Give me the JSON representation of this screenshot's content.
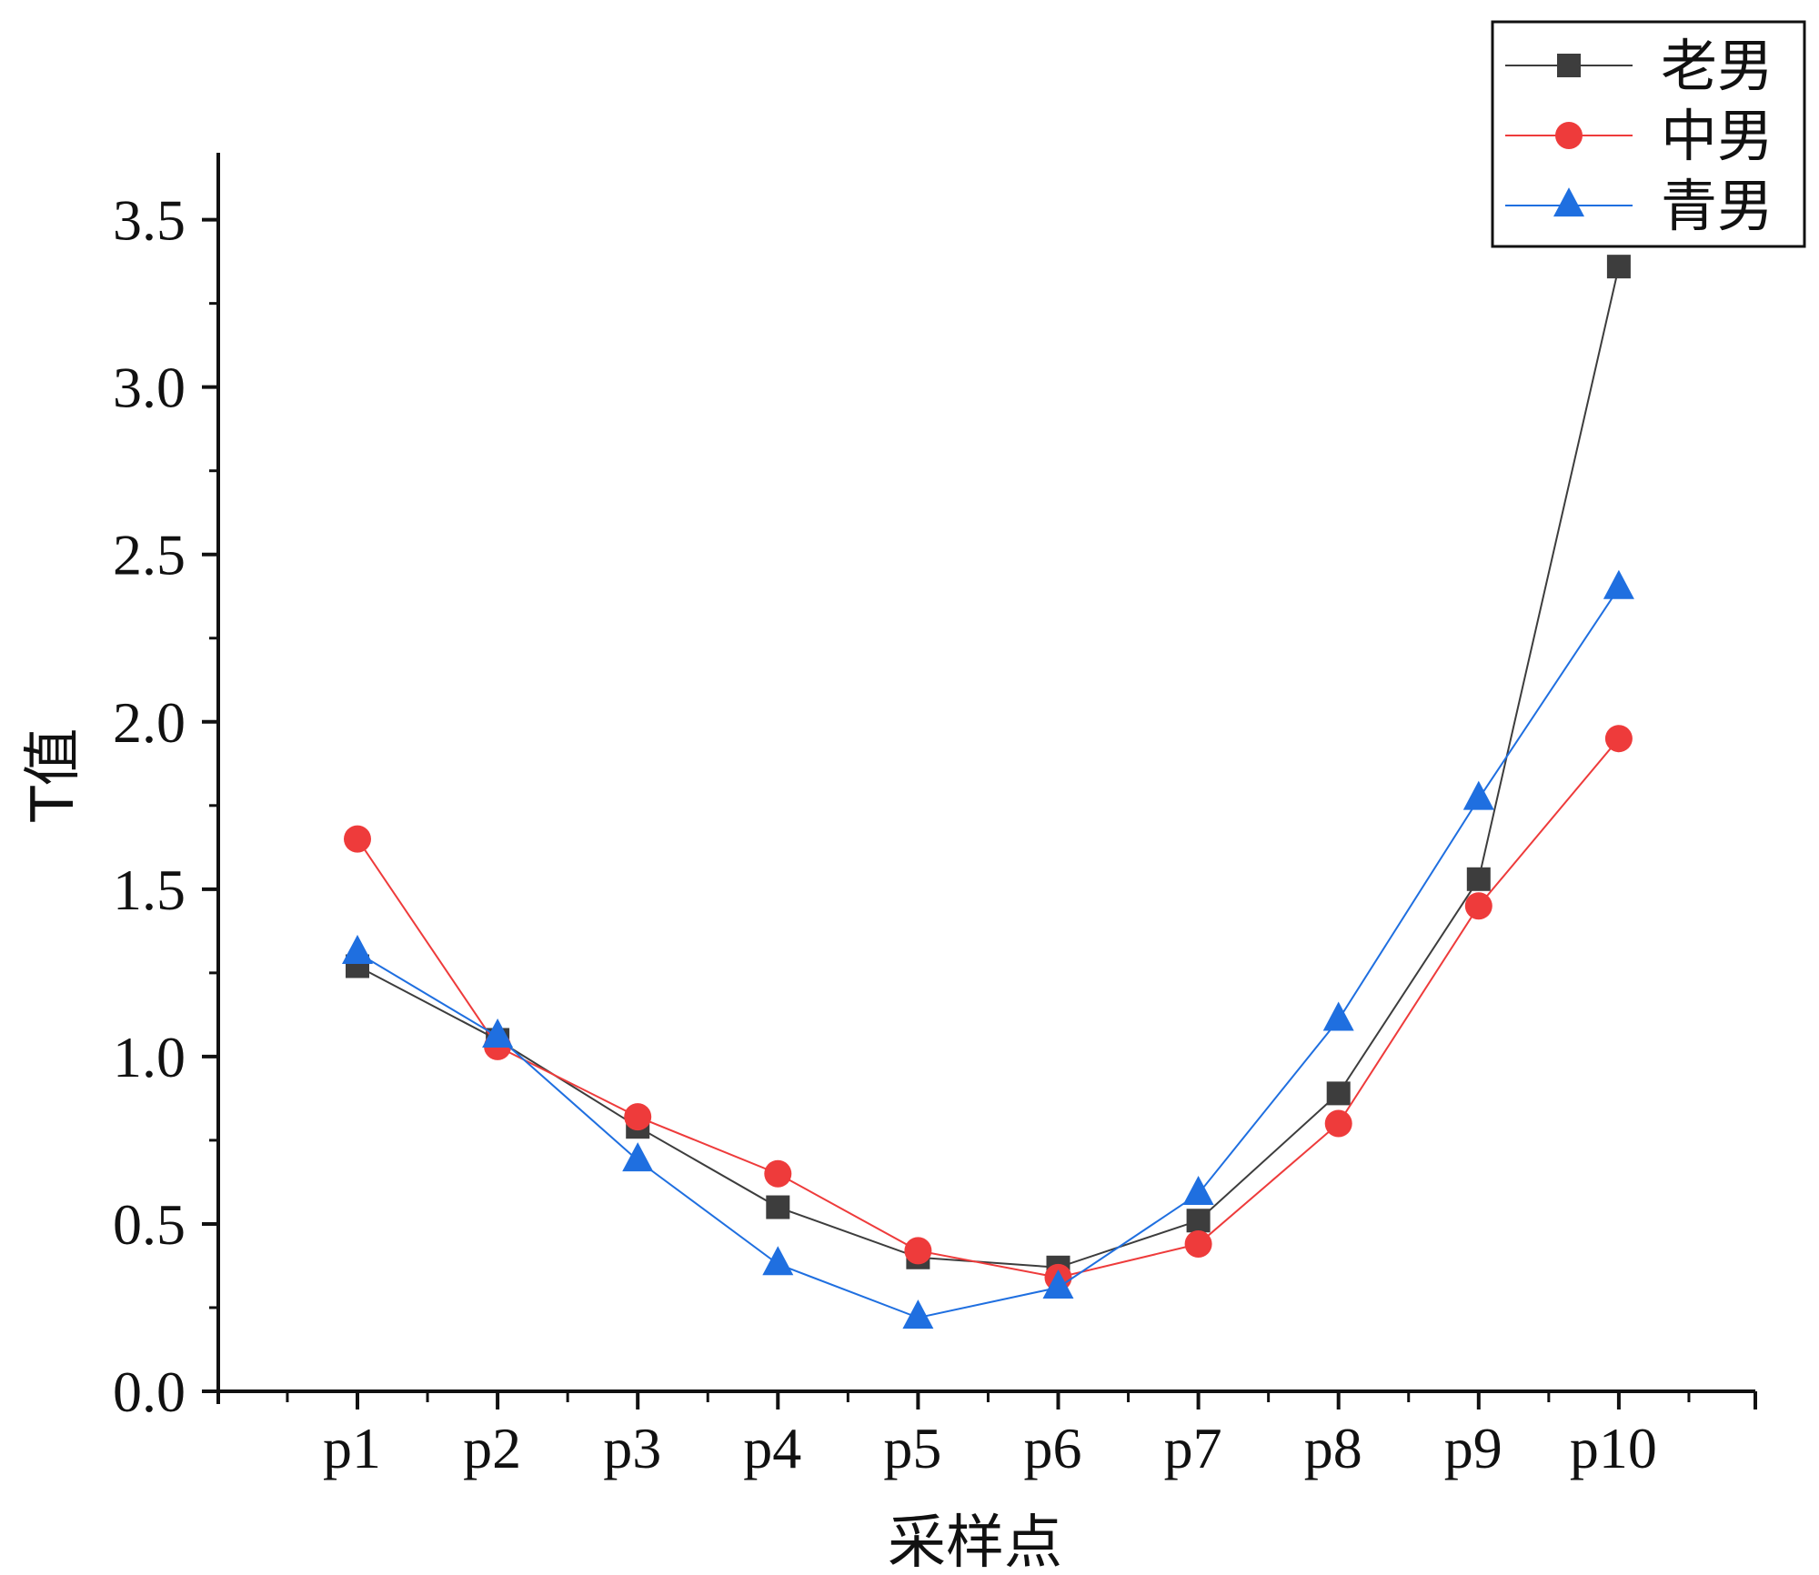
{
  "chart_data": {
    "type": "line",
    "title": "",
    "xlabel": "采样点",
    "ylabel": "T值",
    "categories": [
      "p1",
      "p2",
      "p3",
      "p4",
      "p5",
      "p6",
      "p7",
      "p8",
      "p9",
      "p10"
    ],
    "ylim": [
      0,
      3.7
    ],
    "yticks": [
      "0.0",
      "0.5",
      "1.0",
      "1.5",
      "2.0",
      "2.5",
      "3.0",
      "3.5"
    ],
    "ytick_values": [
      0,
      0.5,
      1.0,
      1.5,
      2.0,
      2.5,
      3.0,
      3.5
    ],
    "legend_position": "top-right",
    "grid": false,
    "series": [
      {
        "name": "老男",
        "color": "#3d3d3d",
        "marker": "square",
        "values": [
          1.27,
          1.05,
          0.79,
          0.55,
          0.4,
          0.37,
          0.51,
          0.89,
          1.53,
          3.36
        ]
      },
      {
        "name": "中男",
        "color": "#ee3b3b",
        "marker": "circle",
        "values": [
          1.65,
          1.03,
          0.82,
          0.65,
          0.42,
          0.34,
          0.44,
          0.8,
          1.45,
          1.95
        ]
      },
      {
        "name": "青男",
        "color": "#1f6fe0",
        "marker": "triangle",
        "values": [
          1.31,
          1.06,
          0.69,
          0.38,
          0.22,
          0.31,
          0.59,
          1.11,
          1.77,
          2.4
        ]
      }
    ]
  }
}
